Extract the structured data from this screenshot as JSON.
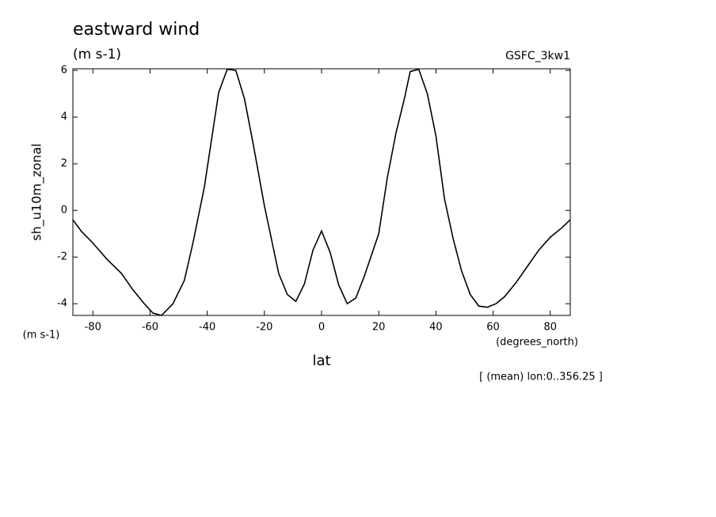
{
  "chart_data": {
    "type": "line",
    "title": "eastward wind",
    "subtitle": "(m s-1)",
    "source": "GSFC_3kw1",
    "y_label": "sh_u10m_zonal",
    "y_unit": "(m s-1)",
    "x_unit": "(degrees_north)",
    "x_label": "lat",
    "note": "[ (mean) lon:0..356.25 ]",
    "xlim": [
      -87,
      87
    ],
    "ylim": [
      -4.5,
      6.07
    ],
    "xticks": [
      -80,
      -60,
      -40,
      -20,
      0,
      20,
      40,
      60,
      80
    ],
    "yticks": [
      -4,
      -2,
      0,
      2,
      4,
      6
    ],
    "series": [
      {
        "color": "#000000",
        "x": [
          -87,
          -84,
          -80,
          -75,
          -70,
          -66,
          -62,
          -59,
          -56,
          -52,
          -48,
          -45,
          -41,
          -36,
          -33,
          -30,
          -27,
          -24,
          -20,
          -15,
          -12,
          -9,
          -6,
          -3,
          0,
          3,
          6,
          9,
          12,
          15,
          20,
          23,
          26,
          29,
          31,
          34,
          37,
          40,
          43,
          46,
          49,
          52,
          55,
          58,
          61,
          64,
          68,
          72,
          76,
          80,
          84,
          87
        ],
        "values": [
          -0.4,
          -0.9,
          -1.4,
          -2.1,
          -2.7,
          -3.4,
          -4.0,
          -4.4,
          -4.5,
          -4.0,
          -3.0,
          -1.4,
          1.0,
          5.05,
          6.05,
          6.0,
          4.8,
          2.9,
          0.2,
          -2.7,
          -3.6,
          -3.9,
          -3.15,
          -1.7,
          -0.88,
          -1.8,
          -3.2,
          -4.0,
          -3.75,
          -2.8,
          -1.0,
          1.4,
          3.3,
          4.8,
          5.95,
          6.05,
          5.0,
          3.2,
          0.5,
          -1.2,
          -2.6,
          -3.6,
          -4.1,
          -4.15,
          -4.0,
          -3.7,
          -3.1,
          -2.4,
          -1.7,
          -1.15,
          -0.75,
          -0.4
        ]
      }
    ]
  }
}
